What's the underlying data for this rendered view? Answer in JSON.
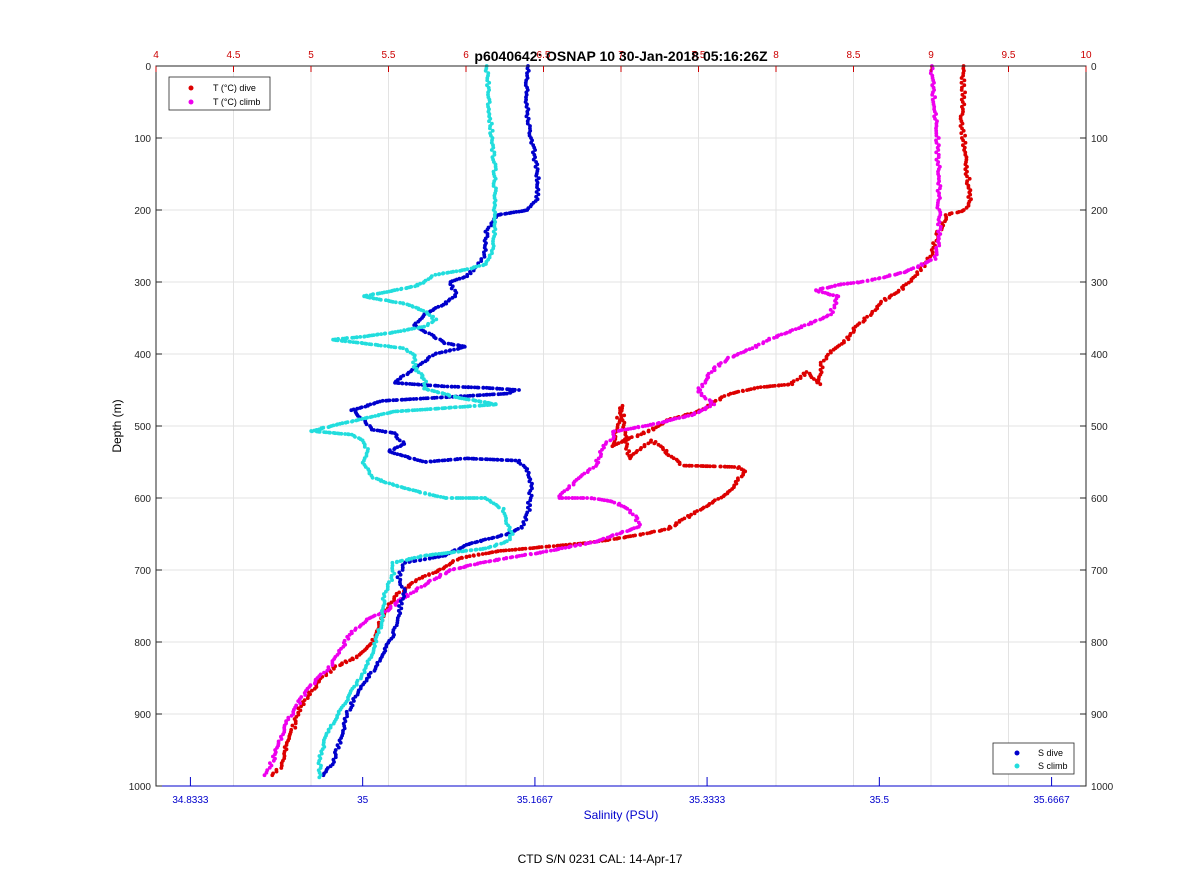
{
  "chart_data": {
    "type": "scatter",
    "title": "p6040642: OSNAP 10 30-Jan-2018 05:16:26Z",
    "ylabel": "Depth (m)",
    "xlabel_bottom": "Salinity (PSU)",
    "xlabel_top": "",
    "footer": "CTD S/N 0231  CAL: 14-Apr-17",
    "y_reversed": true,
    "ylim": [
      0,
      1000
    ],
    "y_ticks": [
      "0",
      "100",
      "200",
      "300",
      "400",
      "500",
      "600",
      "700",
      "800",
      "900",
      "1000"
    ],
    "top_axis": {
      "quantity": "Temperature",
      "lim": [
        4,
        10
      ],
      "ticks": [
        "4",
        "4.5",
        "5",
        "5.5",
        "6",
        "6.5",
        "7",
        "7.5",
        "8",
        "8.5",
        "9",
        "9.5",
        "10"
      ],
      "color": "#cc0000"
    },
    "bottom_axis": {
      "quantity": "Salinity",
      "lim": [
        34.8,
        35.7
      ],
      "ticks": [
        "34.8333",
        "35",
        "35.1667",
        "35.3333",
        "35.5",
        "35.6667"
      ],
      "color": "#0000cc"
    },
    "grid": true,
    "legends": [
      {
        "placement": "top-left",
        "entries": [
          "T (°C) dive",
          "T (°C) climb"
        ]
      },
      {
        "placement": "bottom-right",
        "entries": [
          "S dive",
          "S climb"
        ]
      }
    ],
    "series": [
      {
        "name": "T (°C) dive",
        "axis": "top",
        "color": "#dd0000",
        "points": [
          [
            9.2,
            0
          ],
          [
            9.21,
            40
          ],
          [
            9.2,
            80
          ],
          [
            9.22,
            120
          ],
          [
            9.24,
            160
          ],
          [
            9.25,
            185
          ],
          [
            9.22,
            200
          ],
          [
            9.1,
            207
          ],
          [
            9.05,
            230
          ],
          [
            9.0,
            262
          ],
          [
            8.95,
            278
          ],
          [
            8.9,
            292
          ],
          [
            8.8,
            312
          ],
          [
            8.7,
            325
          ],
          [
            8.6,
            346
          ],
          [
            8.52,
            362
          ],
          [
            8.45,
            382
          ],
          [
            8.35,
            398
          ],
          [
            8.3,
            412
          ],
          [
            8.28,
            442
          ],
          [
            8.2,
            425
          ],
          [
            8.1,
            442
          ],
          [
            7.9,
            446
          ],
          [
            7.7,
            455
          ],
          [
            7.5,
            480
          ],
          [
            7.3,
            492
          ],
          [
            7.2,
            505
          ],
          [
            7.05,
            518
          ],
          [
            6.95,
            528
          ],
          [
            7.0,
            472
          ],
          [
            7.05,
            545
          ],
          [
            7.2,
            520
          ],
          [
            7.4,
            555
          ],
          [
            7.6,
            556
          ],
          [
            7.75,
            557
          ],
          [
            7.8,
            563
          ],
          [
            7.75,
            575
          ],
          [
            7.7,
            590
          ],
          [
            7.6,
            605
          ],
          [
            7.5,
            618
          ],
          [
            7.4,
            630
          ],
          [
            7.3,
            643
          ],
          [
            7.1,
            652
          ],
          [
            6.8,
            662
          ],
          [
            6.5,
            668
          ],
          [
            6.2,
            674
          ],
          [
            5.95,
            684
          ],
          [
            5.85,
            698
          ],
          [
            5.7,
            712
          ],
          [
            5.55,
            735
          ],
          [
            5.5,
            750
          ],
          [
            5.45,
            770
          ],
          [
            5.4,
            800
          ],
          [
            5.3,
            820
          ],
          [
            5.15,
            835
          ],
          [
            5.05,
            855
          ],
          [
            4.98,
            875
          ],
          [
            4.92,
            895
          ],
          [
            4.9,
            910
          ],
          [
            4.88,
            925
          ],
          [
            4.85,
            940
          ],
          [
            4.83,
            955
          ],
          [
            4.8,
            975
          ],
          [
            4.75,
            985
          ]
        ]
      },
      {
        "name": "T (°C) climb",
        "axis": "top",
        "color": "#ee00ee",
        "points": [
          [
            9.0,
            0
          ],
          [
            9.02,
            50
          ],
          [
            9.04,
            100
          ],
          [
            9.05,
            160
          ],
          [
            9.05,
            200
          ],
          [
            9.06,
            240
          ],
          [
            9.02,
            268
          ],
          [
            8.85,
            285
          ],
          [
            8.7,
            293
          ],
          [
            8.55,
            300
          ],
          [
            8.4,
            304
          ],
          [
            8.25,
            312
          ],
          [
            8.4,
            320
          ],
          [
            8.35,
            345
          ],
          [
            8.25,
            355
          ],
          [
            8.1,
            368
          ],
          [
            7.95,
            380
          ],
          [
            7.85,
            392
          ],
          [
            7.7,
            405
          ],
          [
            7.6,
            420
          ],
          [
            7.55,
            435
          ],
          [
            7.5,
            450
          ],
          [
            7.55,
            462
          ],
          [
            7.6,
            470
          ],
          [
            7.45,
            485
          ],
          [
            7.2,
            498
          ],
          [
            6.95,
            508
          ],
          [
            6.95,
            515
          ],
          [
            6.88,
            530
          ],
          [
            6.85,
            548
          ],
          [
            6.82,
            558
          ],
          [
            6.75,
            568
          ],
          [
            6.65,
            588
          ],
          [
            6.6,
            600
          ],
          [
            6.8,
            600
          ],
          [
            6.95,
            605
          ],
          [
            7.05,
            615
          ],
          [
            7.1,
            628
          ],
          [
            7.12,
            640
          ],
          [
            7.0,
            648
          ],
          [
            6.85,
            660
          ],
          [
            6.5,
            675
          ],
          [
            6.3,
            682
          ],
          [
            6.1,
            690
          ],
          [
            5.9,
            700
          ],
          [
            5.75,
            718
          ],
          [
            5.6,
            738
          ],
          [
            5.5,
            755
          ],
          [
            5.35,
            770
          ],
          [
            5.25,
            790
          ],
          [
            5.18,
            815
          ],
          [
            5.12,
            835
          ],
          [
            5.05,
            850
          ],
          [
            4.98,
            865
          ],
          [
            4.92,
            885
          ],
          [
            4.88,
            900
          ],
          [
            4.85,
            910
          ],
          [
            4.82,
            925
          ],
          [
            4.8,
            938
          ],
          [
            4.78,
            950
          ],
          [
            4.75,
            965
          ],
          [
            4.72,
            978
          ],
          [
            4.7,
            985
          ]
        ]
      },
      {
        "name": "S dive",
        "axis": "bottom",
        "color": "#0000cc",
        "points": [
          [
            35.16,
            0
          ],
          [
            35.158,
            40
          ],
          [
            35.16,
            80
          ],
          [
            35.165,
            110
          ],
          [
            35.168,
            140
          ],
          [
            35.17,
            165
          ],
          [
            35.168,
            185
          ],
          [
            35.16,
            200
          ],
          [
            35.13,
            207
          ],
          [
            35.12,
            230
          ],
          [
            35.118,
            262
          ],
          [
            35.11,
            280
          ],
          [
            35.1,
            292
          ],
          [
            35.085,
            300
          ],
          [
            35.09,
            318
          ],
          [
            35.08,
            330
          ],
          [
            35.06,
            345
          ],
          [
            35.05,
            360
          ],
          [
            35.06,
            368
          ],
          [
            35.08,
            385
          ],
          [
            35.1,
            390
          ],
          [
            35.07,
            400
          ],
          [
            35.05,
            420
          ],
          [
            35.03,
            440
          ],
          [
            35.08,
            445
          ],
          [
            35.12,
            447
          ],
          [
            35.15,
            450
          ],
          [
            35.14,
            455
          ],
          [
            35.02,
            465
          ],
          [
            34.99,
            478
          ],
          [
            35.0,
            490
          ],
          [
            35.01,
            505
          ],
          [
            35.03,
            510
          ],
          [
            35.04,
            525
          ],
          [
            35.025,
            535
          ],
          [
            35.04,
            542
          ],
          [
            35.06,
            550
          ],
          [
            35.1,
            545
          ],
          [
            35.15,
            548
          ],
          [
            35.16,
            562
          ],
          [
            35.163,
            580
          ],
          [
            35.162,
            600
          ],
          [
            35.16,
            620
          ],
          [
            35.155,
            640
          ],
          [
            35.14,
            650
          ],
          [
            35.1,
            665
          ],
          [
            35.08,
            680
          ],
          [
            35.04,
            690
          ],
          [
            35.035,
            710
          ],
          [
            35.04,
            730
          ],
          [
            35.035,
            760
          ],
          [
            35.03,
            790
          ],
          [
            35.02,
            815
          ],
          [
            35.01,
            840
          ],
          [
            34.995,
            870
          ],
          [
            34.985,
            900
          ],
          [
            34.98,
            930
          ],
          [
            34.975,
            950
          ],
          [
            34.97,
            970
          ],
          [
            34.962,
            985
          ]
        ]
      },
      {
        "name": "S climb",
        "axis": "bottom",
        "color": "#22dddd",
        "points": [
          [
            35.12,
            0
          ],
          [
            35.122,
            50
          ],
          [
            35.125,
            100
          ],
          [
            35.128,
            150
          ],
          [
            35.128,
            200
          ],
          [
            35.127,
            240
          ],
          [
            35.125,
            260
          ],
          [
            35.12,
            275
          ],
          [
            35.1,
            283
          ],
          [
            35.07,
            290
          ],
          [
            35.06,
            300
          ],
          [
            35.05,
            306
          ],
          [
            35.03,
            312
          ],
          [
            35.0,
            320
          ],
          [
            35.04,
            330
          ],
          [
            35.06,
            340
          ],
          [
            35.07,
            352
          ],
          [
            35.06,
            362
          ],
          [
            35.03,
            370
          ],
          [
            35.0,
            376
          ],
          [
            34.97,
            380
          ],
          [
            35.0,
            385
          ],
          [
            35.04,
            392
          ],
          [
            35.05,
            402
          ],
          [
            35.05,
            418
          ],
          [
            35.06,
            435
          ],
          [
            35.06,
            448
          ],
          [
            35.09,
            460
          ],
          [
            35.11,
            465
          ],
          [
            35.13,
            470
          ],
          [
            35.08,
            475
          ],
          [
            35.03,
            480
          ],
          [
            35.0,
            490
          ],
          [
            34.97,
            500
          ],
          [
            34.95,
            507
          ],
          [
            34.99,
            512
          ],
          [
            35.0,
            520
          ],
          [
            35.005,
            535
          ],
          [
            35.0,
            548
          ],
          [
            35.005,
            560
          ],
          [
            35.01,
            572
          ],
          [
            35.03,
            582
          ],
          [
            35.05,
            590
          ],
          [
            35.08,
            600
          ],
          [
            35.12,
            600
          ],
          [
            35.135,
            615
          ],
          [
            35.14,
            635
          ],
          [
            35.145,
            650
          ],
          [
            35.14,
            660
          ],
          [
            35.12,
            670
          ],
          [
            35.06,
            680
          ],
          [
            35.03,
            690
          ],
          [
            35.03,
            705
          ],
          [
            35.025,
            720
          ],
          [
            35.02,
            740
          ],
          [
            35.02,
            760
          ],
          [
            35.015,
            790
          ],
          [
            35.01,
            815
          ],
          [
            35.0,
            845
          ],
          [
            34.99,
            865
          ],
          [
            34.985,
            880
          ],
          [
            34.975,
            905
          ],
          [
            34.965,
            930
          ],
          [
            34.96,
            955
          ],
          [
            34.958,
            975
          ],
          [
            34.958,
            988
          ]
        ]
      }
    ]
  }
}
